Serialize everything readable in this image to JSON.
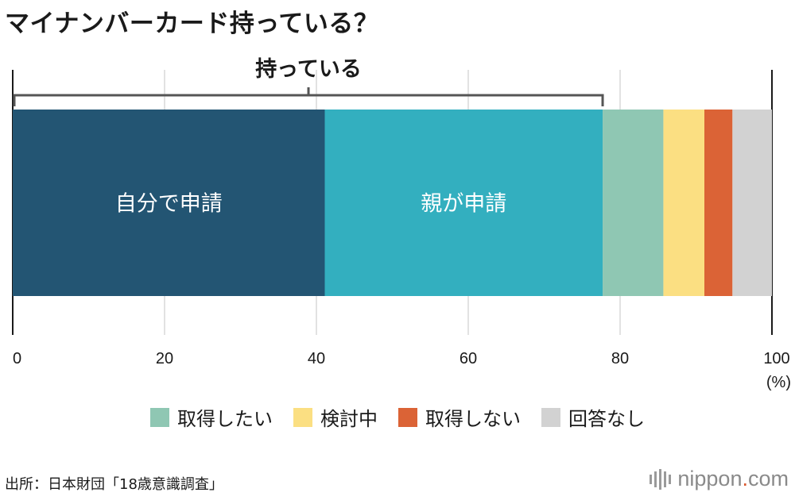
{
  "title": "マイナンバーカード持っている？",
  "chart_data": {
    "type": "bar",
    "orientation": "horizontal-stacked-100",
    "title": "マイナンバーカード持っている？",
    "categories": [
      "自分で申請",
      "親が申請",
      "取得したい",
      "検討中",
      "取得しない",
      "回答なし"
    ],
    "values": [
      41.1,
      36.6,
      8.0,
      5.4,
      3.7,
      5.2
    ],
    "colors": [
      "#235573",
      "#33afbf",
      "#8fc7b3",
      "#fbdf82",
      "#db6336",
      "#d2d2d2"
    ],
    "bracket": {
      "label": "持っている",
      "from": 0,
      "to": 77.7
    },
    "xlim": [
      0,
      100
    ],
    "xticks": [
      0,
      20,
      40,
      60,
      80,
      100
    ],
    "xtick_labels": [
      "0",
      "20",
      "40",
      "60",
      "80",
      "100"
    ],
    "x_unit": "(%)",
    "grid": true,
    "inbar_labels": [
      {
        "index": 0,
        "text": "自分で申請"
      },
      {
        "index": 1,
        "text": "親が申請"
      }
    ]
  },
  "legend": [
    {
      "label": "取得したい",
      "color": "#8fc7b3"
    },
    {
      "label": "検討中",
      "color": "#fbdf82"
    },
    {
      "label": "取得しない",
      "color": "#db6336"
    },
    {
      "label": "回答なし",
      "color": "#d2d2d2"
    }
  ],
  "source": "出所：日本財団「18歳意識調査」",
  "brand": {
    "name": "nippon",
    "dot": ".",
    "tld": "com"
  }
}
